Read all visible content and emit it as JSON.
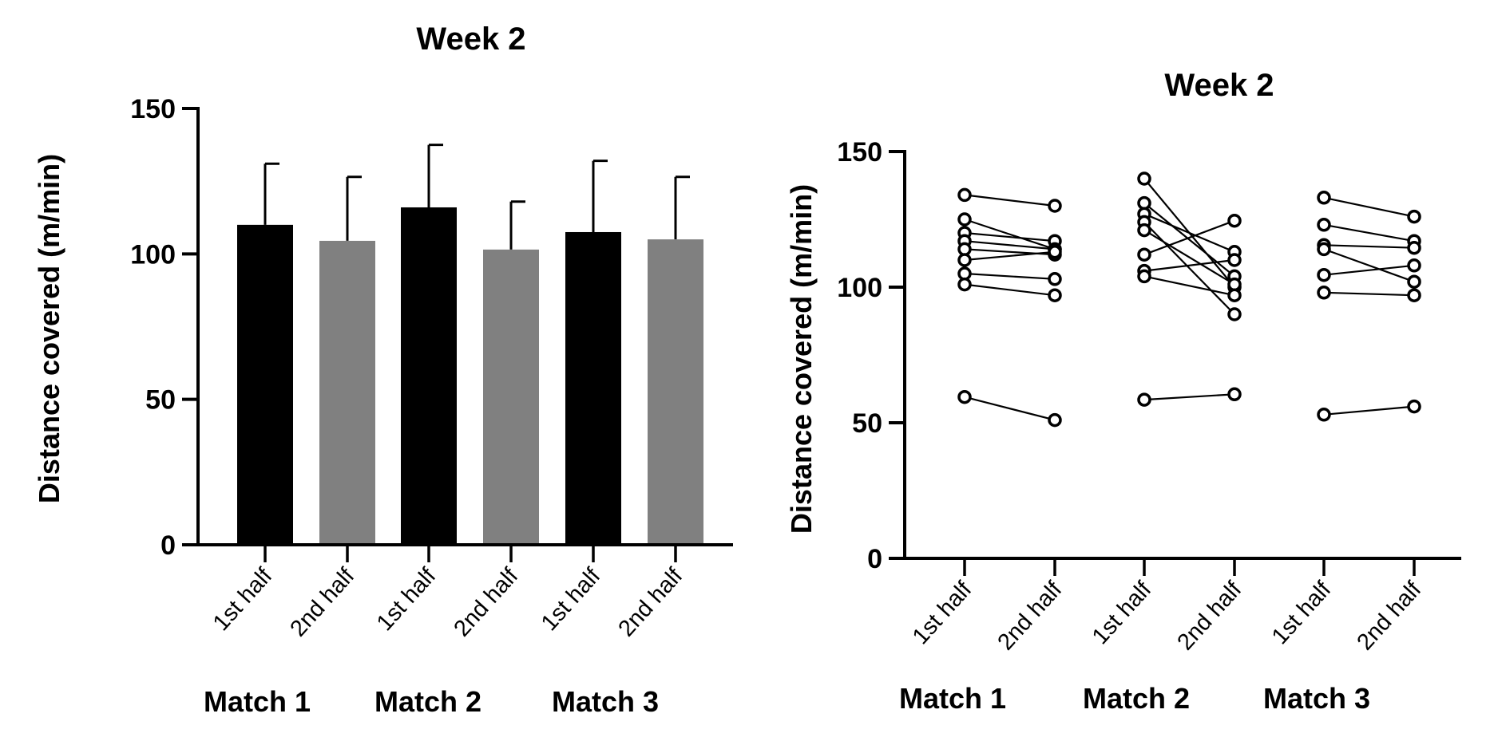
{
  "chart_data": [
    {
      "type": "bar",
      "title": "Week 2",
      "ylabel": "Distance covered (m/min)",
      "xlabel": "",
      "ylim": [
        0,
        150
      ],
      "yticks": [
        "0",
        "50",
        "100",
        "150"
      ],
      "categories": [
        "1st half",
        "2nd half",
        "1st half",
        "2nd half",
        "1st half",
        "2nd half"
      ],
      "groups": [
        "Match 1",
        "Match 2",
        "Match 3"
      ],
      "values": [
        110,
        104.5,
        116,
        101.5,
        107.5,
        105
      ],
      "error": [
        21,
        22,
        21.5,
        16.5,
        24.5,
        21.5
      ],
      "colors": [
        "#000000",
        "#808080",
        "#000000",
        "#808080",
        "#000000",
        "#808080"
      ],
      "grid": false
    },
    {
      "type": "line",
      "title": "Week 2",
      "ylabel": "Distance covered (m/min)",
      "xlabel": "",
      "ylim": [
        0,
        150
      ],
      "yticks": [
        "0",
        "50",
        "100",
        "150"
      ],
      "categories": [
        "1st half",
        "2nd half",
        "1st half",
        "2nd half",
        "1st half",
        "2nd half"
      ],
      "groups": [
        "Match 1",
        "Match 2",
        "Match 3"
      ],
      "grid": false,
      "pairs": [
        {
          "group": "Match 1",
          "first": [
            134,
            125,
            120,
            117,
            114,
            110,
            105,
            101,
            59.5
          ],
          "second": [
            130,
            114,
            117,
            114,
            112,
            113,
            103,
            97,
            51
          ]
        },
        {
          "group": "Match 2",
          "first": [
            140,
            131,
            127,
            124,
            121,
            112,
            106,
            104,
            58.5
          ],
          "second": [
            100,
            104,
            113,
            90,
            101,
            124.5,
            110,
            97,
            60.5
          ]
        },
        {
          "group": "Match 3",
          "first": [
            133,
            123,
            115.5,
            114,
            104.5,
            98,
            53
          ],
          "second": [
            126,
            117,
            114.5,
            102,
            108,
            97,
            56
          ]
        }
      ]
    }
  ]
}
